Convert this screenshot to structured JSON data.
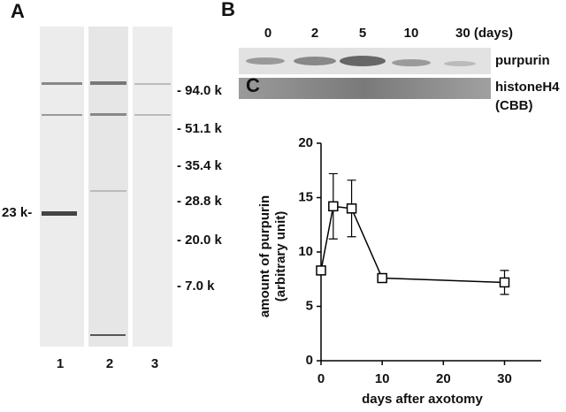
{
  "panel_a": {
    "label": "A",
    "markers": [
      "- 94.0 k",
      "- 51.1 k",
      "- 35.4 k",
      "- 28.8 k",
      "- 20.0 k",
      "- 7.0 k"
    ],
    "band_label": "23 k-",
    "lanes": [
      "1",
      "2",
      "3"
    ]
  },
  "panel_b": {
    "label": "B",
    "days": [
      "0",
      "2",
      "5",
      "10",
      "30 (days)"
    ],
    "rows": [
      "purpurin",
      "histoneH4",
      "(CBB)"
    ]
  },
  "chart_data": {
    "type": "line",
    "panel_label": "C",
    "xlabel": "days after axotomy",
    "ylabel": [
      "amount of purpurin",
      "(arbitrary unit)"
    ],
    "x": [
      0,
      2,
      5,
      10,
      30
    ],
    "series": [
      {
        "values": [
          8.3,
          14.2,
          14.0,
          7.6,
          7.2
        ],
        "errors": [
          null,
          3.0,
          2.6,
          null,
          1.1
        ],
        "color": "#000000"
      }
    ],
    "xlim": [
      0,
      36
    ],
    "xticks": [
      0,
      10,
      20,
      30
    ],
    "ylim": [
      0,
      20
    ],
    "yticks": [
      0,
      5,
      10,
      15,
      20
    ]
  }
}
